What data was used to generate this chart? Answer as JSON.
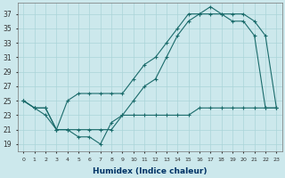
{
  "xlabel": "Humidex (Indice chaleur)",
  "bg_color": "#cce8ec",
  "grid_color": "#aad4d8",
  "line_color": "#1a6b6b",
  "xlim": [
    -0.5,
    23.5
  ],
  "ylim": [
    18,
    38.5
  ],
  "yticks": [
    19,
    21,
    23,
    25,
    27,
    29,
    31,
    33,
    35,
    37
  ],
  "xticks": [
    0,
    1,
    2,
    3,
    4,
    5,
    6,
    7,
    8,
    9,
    10,
    11,
    12,
    13,
    14,
    15,
    16,
    17,
    18,
    19,
    20,
    21,
    22,
    23
  ],
  "line1_x": [
    0,
    1,
    2,
    3,
    4,
    5,
    6,
    7,
    8,
    9,
    10,
    11,
    12,
    13,
    14,
    15,
    16,
    17,
    18,
    19,
    20,
    21,
    22,
    23
  ],
  "line1_y": [
    25,
    24,
    24,
    21,
    25,
    26,
    26,
    26,
    26,
    26,
    28,
    30,
    31,
    33,
    35,
    37,
    37,
    38,
    37,
    37,
    37,
    36,
    34,
    24
  ],
  "line2_x": [
    0,
    1,
    2,
    3,
    4,
    5,
    6,
    7,
    8,
    9,
    10,
    11,
    12,
    13,
    14,
    15,
    16,
    17,
    18,
    19,
    20,
    21,
    22,
    23
  ],
  "line2_y": [
    25,
    24,
    24,
    21,
    21,
    21,
    21,
    21,
    21,
    23,
    25,
    27,
    28,
    31,
    34,
    36,
    37,
    37,
    37,
    36,
    36,
    34,
    24,
    24
  ],
  "line3_x": [
    0,
    1,
    2,
    3,
    4,
    5,
    6,
    7,
    8,
    9,
    10,
    11,
    12,
    13,
    14,
    15,
    16,
    17,
    18,
    19,
    20,
    21,
    22,
    23
  ],
  "line3_y": [
    25,
    24,
    23,
    21,
    21,
    20,
    20,
    19,
    22,
    23,
    23,
    23,
    23,
    23,
    23,
    23,
    24,
    24,
    24,
    24,
    24,
    24,
    24,
    24
  ]
}
